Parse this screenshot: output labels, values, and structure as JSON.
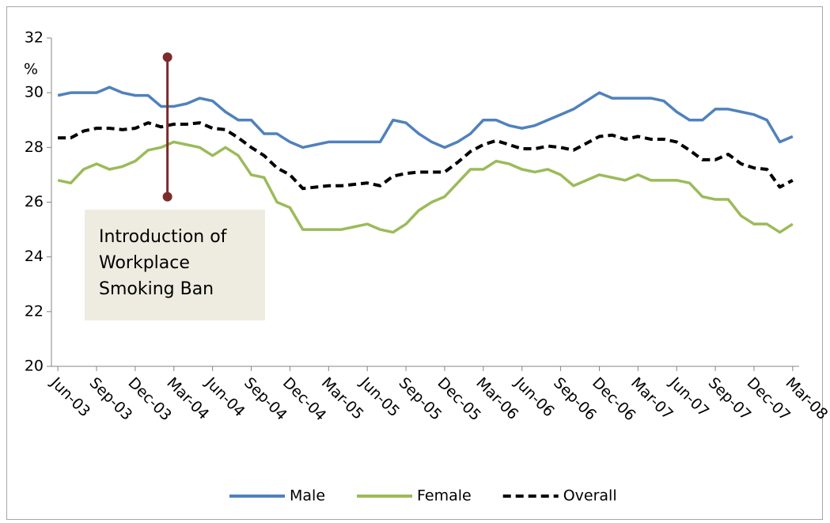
{
  "chart_data": {
    "type": "line",
    "y_label": "%",
    "annotation": "Introduction of Workplace Smoking Ban",
    "event_marker": {
      "x": "Mar-04",
      "y": [
        26.2,
        31.3
      ],
      "color": "#7b2c2c"
    },
    "categories": [
      "Jun-03",
      null,
      null,
      "Sep-03",
      null,
      null,
      "Dec-03",
      null,
      null,
      "Mar-04",
      null,
      null,
      "Jun-04",
      null,
      null,
      "Sep-04",
      null,
      null,
      "Dec-04",
      null,
      null,
      "Mar-05",
      null,
      null,
      "Jun-05",
      null,
      null,
      "Sep-05",
      null,
      null,
      "Dec-05",
      null,
      null,
      "Mar-06",
      null,
      null,
      "Jun-06",
      null,
      null,
      "Sep-06",
      null,
      null,
      "Dec-06",
      null,
      null,
      "Mar-07",
      null,
      null,
      "Jun-07",
      null,
      null,
      "Sep-07",
      null,
      null,
      "Dec-07",
      null,
      null,
      "Mar-08"
    ],
    "series": [
      {
        "name": "Male",
        "color": "#4f81bd",
        "values": [
          29.9,
          30,
          30,
          30,
          30.2,
          30,
          29.9,
          29.9,
          29.5,
          29.5,
          29.6,
          29.8,
          29.7,
          29.3,
          29,
          29,
          28.5,
          28.5,
          28.2,
          28,
          28.1,
          28.2,
          28.2,
          28.2,
          28.2,
          28.2,
          29,
          28.9,
          28.5,
          28.2,
          28,
          28.2,
          28.5,
          29,
          29,
          28.8,
          28.7,
          28.8,
          29,
          29.2,
          29.4,
          29.7,
          30,
          29.8,
          29.8,
          29.8,
          29.8,
          29.7,
          29.3,
          29,
          29,
          29.4,
          29.4,
          29.3,
          29.2,
          29,
          28.2,
          28.4
        ]
      },
      {
        "name": "Female",
        "color": "#9bbb59",
        "values": [
          26.8,
          26.7,
          27.2,
          27.4,
          27.2,
          27.3,
          27.5,
          27.9,
          28,
          28.2,
          28.1,
          28,
          27.7,
          28,
          27.7,
          27,
          26.9,
          26,
          25.8,
          25,
          25,
          25,
          25,
          25.1,
          25.2,
          25,
          24.9,
          25.2,
          25.7,
          26,
          26.2,
          26.7,
          27.2,
          27.2,
          27.5,
          27.4,
          27.2,
          27.1,
          27.2,
          27,
          26.6,
          26.8,
          27,
          26.9,
          26.8,
          27,
          26.8,
          26.8,
          26.8,
          26.7,
          26.2,
          26.1,
          26.1,
          25.5,
          25.2,
          25.2,
          24.9,
          25.2
        ]
      },
      {
        "name": "Overall",
        "color": "#000000",
        "dashed": true,
        "values": [
          28.35,
          28.35,
          28.6,
          28.7,
          28.7,
          28.65,
          28.7,
          28.9,
          28.75,
          28.85,
          28.85,
          28.9,
          28.7,
          28.65,
          28.35,
          28,
          27.7,
          27.25,
          27,
          26.5,
          26.55,
          26.6,
          26.6,
          26.65,
          26.7,
          26.6,
          26.95,
          27.05,
          27.1,
          27.1,
          27.1,
          27.45,
          27.85,
          28.1,
          28.25,
          28.1,
          27.95,
          27.95,
          28.05,
          28,
          27.9,
          28.15,
          28.4,
          28.45,
          28.3,
          28.4,
          28.3,
          28.3,
          28.2,
          27.9,
          27.55,
          27.55,
          27.75,
          27.4,
          27.25,
          27.2,
          26.55,
          26.8
        ]
      }
    ],
    "ylim": [
      20,
      32
    ],
    "yticks": [
      20,
      22,
      24,
      26,
      28,
      30,
      32
    ],
    "grid": false
  }
}
